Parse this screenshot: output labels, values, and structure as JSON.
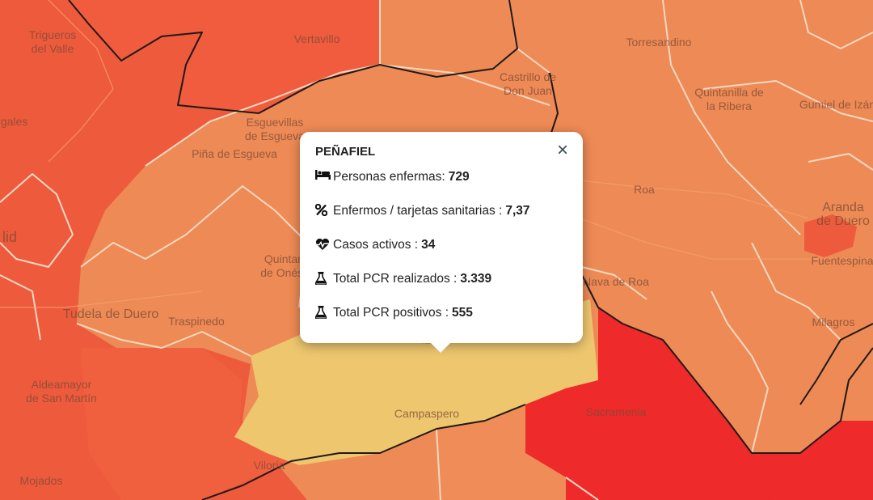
{
  "map": {
    "towns": [
      {
        "name": "Trigueros\ndel Valle"
      },
      {
        "name": "Vertavillo"
      },
      {
        "name": "Torresandino"
      },
      {
        "name": "Castrillo de\nDon Juan"
      },
      {
        "name": "Quintanilla de\nla Ribera"
      },
      {
        "name": "Gumiel de Izán"
      },
      {
        "name": "igales"
      },
      {
        "name": "Esguevillas\nde Esgueva"
      },
      {
        "name": "Piña de Esgueva"
      },
      {
        "name": "Roa"
      },
      {
        "name": "Aranda\nde Duero"
      },
      {
        "name": "Fuentespina"
      },
      {
        "name": "lid"
      },
      {
        "name": "Quintanilla\nde Onésimo"
      },
      {
        "name": "Nava de Roa"
      },
      {
        "name": "Tudela de Duero"
      },
      {
        "name": "Traspinedo"
      },
      {
        "name": "Milagros"
      },
      {
        "name": "Aldeamayor\nde San Martín"
      },
      {
        "name": "Campaspero"
      },
      {
        "name": "Sacramenia"
      },
      {
        "name": "Viloria"
      },
      {
        "name": "Mojados"
      }
    ],
    "colors": {
      "deep_orange": "#ee5a3c",
      "orange": "#ee8a55",
      "red": "#ef2a2a",
      "highlight": "#edc66e"
    }
  },
  "popup": {
    "title": "PEÑAFIEL",
    "close_label": "×",
    "rows": [
      {
        "icon": "bed-icon",
        "label": "Personas enfermas:",
        "value": "729"
      },
      {
        "icon": "percent-icon",
        "label": "Enfermos / tarjetas sanitarias :",
        "value": "7,37"
      },
      {
        "icon": "heartbeat-icon",
        "label": "Casos activos :",
        "value": "34"
      },
      {
        "icon": "flask-icon",
        "label": "Total PCR realizados :",
        "value": "3.339"
      },
      {
        "icon": "flask-icon",
        "label": "Total PCR positivos :",
        "value": "555"
      }
    ]
  }
}
